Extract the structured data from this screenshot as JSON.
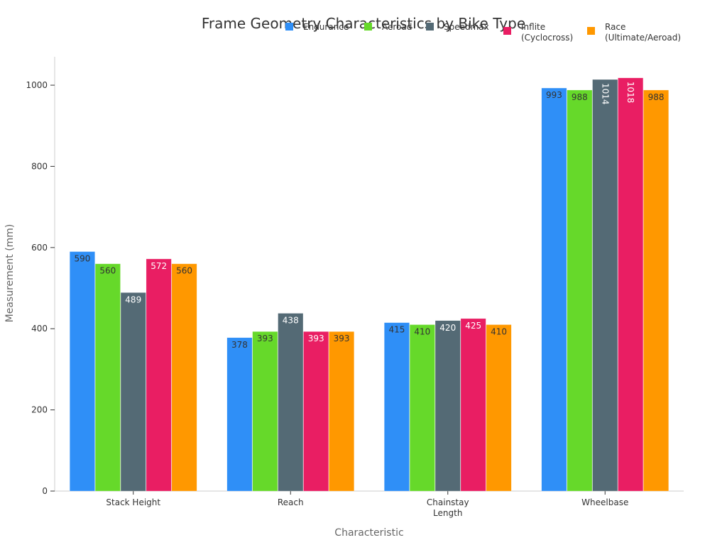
{
  "chart_data": {
    "type": "bar",
    "title": "Frame Geometry Characteristics by Bike Type",
    "xlabel": "Characteristic",
    "ylabel": "Measurement (mm)",
    "categories": [
      [
        "Stack Height"
      ],
      [
        "Reach"
      ],
      [
        "Chainstay",
        "Length"
      ],
      [
        "Wheelbase"
      ]
    ],
    "ylim": [
      0,
      1070
    ],
    "yticks": [
      0,
      200,
      400,
      600,
      800,
      1000
    ],
    "grid": false,
    "legend_position": "top-right",
    "series": [
      {
        "name": [
          "Endurance"
        ],
        "color": "#2F8FF7",
        "label_color": "#333333",
        "values": [
          590,
          378,
          415,
          993
        ]
      },
      {
        "name": [
          "Aeroad"
        ],
        "color": "#66D92A",
        "label_color": "#333333",
        "values": [
          560,
          393,
          410,
          988
        ]
      },
      {
        "name": [
          "Speedmax"
        ],
        "color": "#546A75",
        "label_color": "#ffffff",
        "values": [
          489,
          438,
          420,
          1014
        ]
      },
      {
        "name": [
          "Inflite",
          "(Cyclocross)"
        ],
        "color": "#E91E63",
        "label_color": "#ffffff",
        "values": [
          572,
          393,
          425,
          1018
        ]
      },
      {
        "name": [
          "Race",
          "(Ultimate/Aeroad)"
        ],
        "color": "#FF9800",
        "label_color": "#333333",
        "values": [
          560,
          393,
          410,
          988
        ]
      }
    ]
  }
}
